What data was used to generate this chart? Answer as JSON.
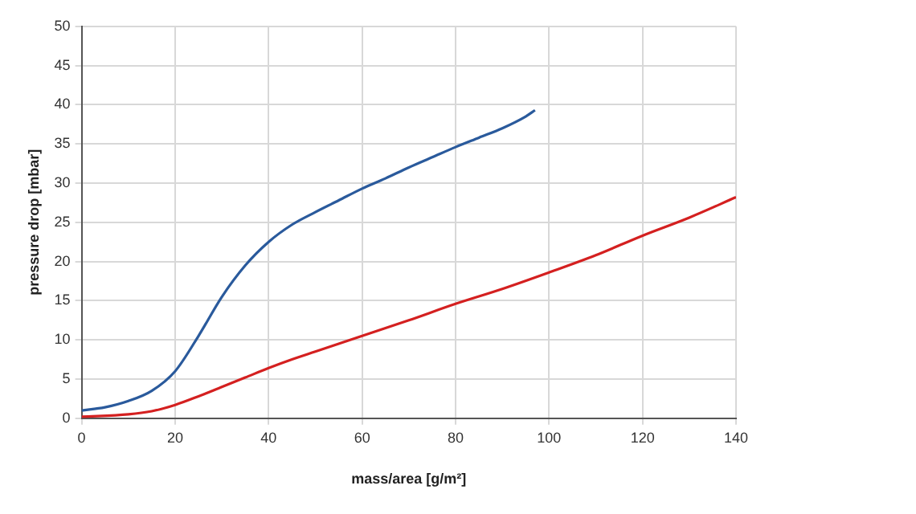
{
  "chart_data": {
    "type": "line",
    "xlabel": "mass/area [g/m²]",
    "ylabel": "pressure drop [mbar]",
    "xlim": [
      0,
      140
    ],
    "xticks": [
      0,
      20,
      40,
      60,
      80,
      100,
      120,
      140
    ],
    "ylim": [
      0,
      50
    ],
    "yticks": [
      0,
      5,
      10,
      15,
      20,
      25,
      30,
      35,
      40,
      45,
      50
    ],
    "grid": true,
    "marker": "none",
    "line_style": "solid",
    "series": [
      {
        "color": "#2a5a9c",
        "x": [
          0,
          5,
          10,
          15,
          20,
          25,
          30,
          35,
          40,
          45,
          50,
          55,
          60,
          65,
          70,
          75,
          80,
          85,
          90,
          95,
          97
        ],
        "values": [
          1.0,
          1.4,
          2.2,
          3.5,
          6,
          10.5,
          15.5,
          19.5,
          22.5,
          24.7,
          26.3,
          27.8,
          29.3,
          30.6,
          32,
          33.3,
          34.6,
          35.8,
          37,
          38.5,
          39.3
        ]
      },
      {
        "color": "#d42020",
        "x": [
          0,
          10,
          15,
          20,
          25,
          30,
          35,
          40,
          45,
          50,
          60,
          70,
          80,
          90,
          100,
          110,
          120,
          130,
          140
        ],
        "values": [
          0.2,
          0.5,
          0.9,
          1.7,
          2.8,
          4.0,
          5.2,
          6.4,
          7.5,
          8.5,
          10.5,
          12.5,
          14.6,
          16.5,
          18.6,
          20.8,
          23.3,
          25.6,
          28.2
        ]
      }
    ]
  }
}
